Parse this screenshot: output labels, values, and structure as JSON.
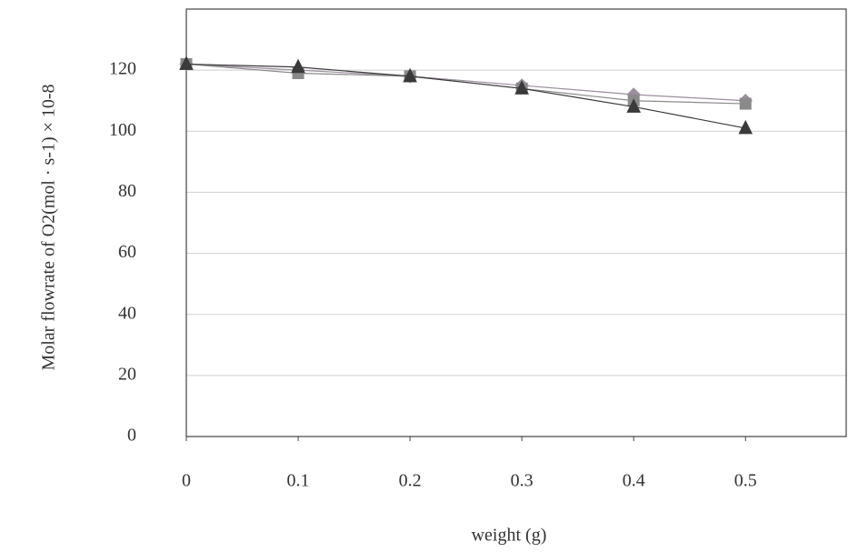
{
  "chart_data": {
    "type": "line",
    "x_label": "weight (g)",
    "y_label": "Molar flowrate of O2(mol · s-1) × 10-8",
    "x": [
      0,
      0.1,
      0.2,
      0.3,
      0.4,
      0.5
    ],
    "series": [
      {
        "color": "#9c8f9e",
        "marker": "diamond",
        "values": [
          122,
          120,
          118,
          115,
          112,
          110
        ]
      },
      {
        "color": "#8a8a8a",
        "marker": "square",
        "values": [
          122,
          119,
          118,
          114,
          110,
          109
        ]
      },
      {
        "color": "#3a3a3a",
        "marker": "triangle",
        "values": [
          122,
          121,
          118,
          114,
          108,
          101
        ]
      }
    ],
    "xlim": [
      0,
      0.59
    ],
    "xticks": [
      0,
      0.1,
      0.2,
      0.3,
      0.4,
      0.5
    ],
    "ylim": [
      0,
      140
    ],
    "yticks": [
      0,
      20,
      40,
      60,
      80,
      100,
      120
    ],
    "grid": true
  }
}
